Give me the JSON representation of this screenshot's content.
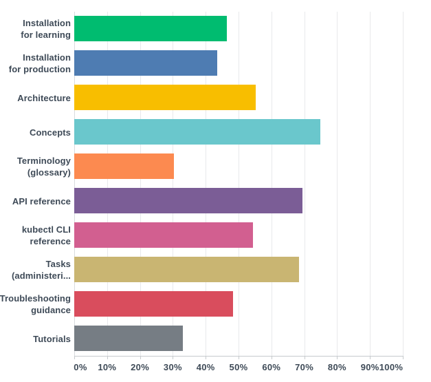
{
  "chart_data": {
    "type": "bar",
    "orientation": "horizontal",
    "title": "",
    "categories": [
      "Installation for learning",
      "Installation for production",
      "Architecture",
      "Concepts",
      "Terminology (glossary)",
      "API reference",
      "kubectl CLI reference",
      "Tasks (administeri...",
      "Troubleshooting guidance",
      "Tutorials"
    ],
    "category_lines": [
      [
        "Installation",
        "for learning"
      ],
      [
        "Installation",
        "for production"
      ],
      [
        "Architecture"
      ],
      [
        "Concepts"
      ],
      [
        "Terminology",
        "(glossary)"
      ],
      [
        "API reference"
      ],
      [
        "kubectl CLI",
        "reference"
      ],
      [
        "Tasks",
        "(administeri..."
      ],
      [
        "Troubleshooting",
        "guidance"
      ],
      [
        "Tutorials"
      ]
    ],
    "values": [
      46.4,
      43.4,
      55.3,
      74.8,
      30.4,
      69.4,
      54.3,
      68.4,
      48.4,
      33.0
    ],
    "unit": "%",
    "bar_colors": [
      "#00bc70",
      "#4e7cb2",
      "#f8be00",
      "#6ac7cc",
      "#fc8a50",
      "#7b5d96",
      "#d25f90",
      "#c9b572",
      "#d94d5d",
      "#767d84"
    ],
    "x_ticks": [
      "0%",
      "10%",
      "20%",
      "30%",
      "40%",
      "50%",
      "60%",
      "70%",
      "80%",
      "90%",
      "100%"
    ],
    "xlim": [
      0,
      100
    ],
    "grid": {
      "vertical": true,
      "interval_pct": 10
    },
    "legend": "none"
  },
  "colors": {
    "label_text": "#3e4a57",
    "gridline": "#e8e9eb",
    "axis_line": "#c6cacd",
    "background": "#ffffff"
  }
}
